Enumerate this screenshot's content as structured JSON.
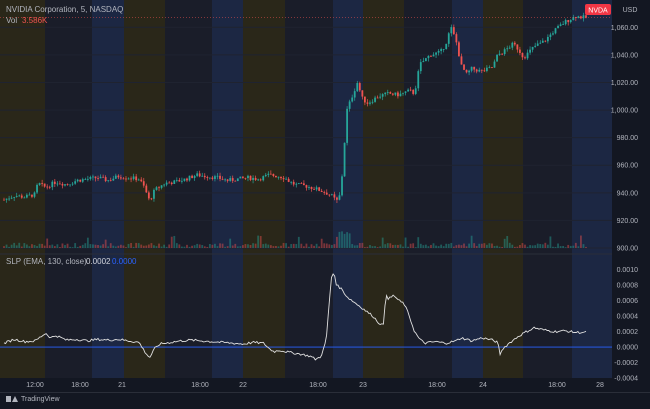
{
  "header": {
    "symbol_line": "NVIDIA Corporation, 5, NASDAQ",
    "vol_label": "Vol",
    "vol_value": "3.586K",
    "currency": "USD",
    "ticker_badge": "NVDA"
  },
  "indicator": {
    "label": "SLP (EMA, 130, close)",
    "value1": "0.0002",
    "value2": "0.0000"
  },
  "footer": {
    "brand": "TradingView"
  },
  "colors": {
    "background": "#131722",
    "up": "#26a69a",
    "down": "#ef5350",
    "indicator_line": "#e0e0e0",
    "zero_line": "#2962ff",
    "band_premarket": "#2a2719",
    "band_extended": "#1c2743",
    "band_regular": "#1a1d29",
    "badge": "#f23645"
  },
  "chart_data": [
    {
      "type": "candlestick",
      "title": "NVIDIA Corporation, 5, NASDAQ",
      "ylim": [
        900,
        1074
      ],
      "y_ticks": [
        900,
        920,
        940,
        960,
        980,
        1000,
        1020,
        1040,
        1060
      ],
      "y_tick_labels": [
        "900.00",
        "920.00",
        "940.00",
        "960.00",
        "980.00",
        "1,000.00",
        "1,020.00",
        "1,040.00",
        "1,060.00"
      ],
      "x_tick_labels": [
        "12:00",
        "18:00",
        "21",
        "18:00",
        "22",
        "18:00",
        "23",
        "18:00",
        "24",
        "18:00",
        "28"
      ],
      "series": [
        {
          "name": "NVDA",
          "close_path": [
            [
              0,
              935
            ],
            [
              0.02,
              938
            ],
            [
              0.04,
              937
            ],
            [
              0.06,
              939
            ],
            [
              0.065,
              947
            ],
            [
              0.08,
              944
            ],
            [
              0.1,
              948
            ],
            [
              0.12,
              946
            ],
            [
              0.14,
              949
            ],
            [
              0.16,
              950
            ],
            [
              0.18,
              951
            ],
            [
              0.2,
              949
            ],
            [
              0.22,
              952
            ],
            [
              0.24,
              951
            ],
            [
              0.26,
              950
            ],
            [
              0.27,
              944
            ],
            [
              0.28,
              934
            ],
            [
              0.29,
              942
            ],
            [
              0.31,
              947
            ],
            [
              0.33,
              948
            ],
            [
              0.35,
              950
            ],
            [
              0.37,
              953
            ],
            [
              0.39,
              952
            ],
            [
              0.41,
              951
            ],
            [
              0.43,
              949
            ],
            [
              0.45,
              950
            ],
            [
              0.47,
              951
            ],
            [
              0.49,
              950
            ],
            [
              0.51,
              953
            ],
            [
              0.53,
              952
            ],
            [
              0.54,
              951
            ],
            [
              0.55,
              948
            ],
            [
              0.56,
              946
            ],
            [
              0.58,
              945
            ],
            [
              0.6,
              943
            ],
            [
              0.62,
              940
            ],
            [
              0.63,
              938
            ],
            [
              0.64,
              934
            ],
            [
              0.645,
              936
            ],
            [
              0.65,
              950
            ],
            [
              0.66,
              1000
            ],
            [
              0.67,
              1010
            ],
            [
              0.68,
              1020
            ],
            [
              0.69,
              1008
            ],
            [
              0.7,
              1005
            ],
            [
              0.72,
              1010
            ],
            [
              0.74,
              1012
            ],
            [
              0.76,
              1011
            ],
            [
              0.78,
              1014
            ],
            [
              0.79,
              1012
            ],
            [
              0.8,
              1033
            ],
            [
              0.82,
              1040
            ],
            [
              0.84,
              1042
            ],
            [
              0.85,
              1048
            ],
            [
              0.86,
              1060
            ],
            [
              0.87,
              1050
            ],
            [
              0.88,
              1032
            ],
            [
              0.89,
              1026
            ],
            [
              0.9,
              1030
            ],
            [
              0.92,
              1028
            ],
            [
              0.94,
              1031
            ],
            [
              0.95,
              1040
            ],
            [
              0.96,
              1042
            ],
            [
              0.97,
              1045
            ],
            [
              0.98,
              1048
            ],
            [
              0.99,
              1044
            ],
            [
              1.0,
              1038
            ],
            [
              1.02,
              1046
            ],
            [
              1.04,
              1050
            ],
            [
              1.06,
              1058
            ],
            [
              1.08,
              1064
            ],
            [
              1.1,
              1068
            ],
            [
              1.12,
              1067
            ]
          ]
        }
      ],
      "volume_ylim": [
        0,
        12
      ]
    },
    {
      "type": "line",
      "title": "SLP (EMA, 130, close)",
      "ylim": [
        -0.0004,
        0.0011
      ],
      "y_ticks": [
        -0.0004,
        -0.0002,
        0.0,
        0.0002,
        0.0004,
        0.0006,
        0.0008,
        0.001
      ],
      "y_tick_labels": [
        "-0.0004",
        "-0.0002",
        "0.0000",
        "0.0002",
        "0.0004",
        "0.0006",
        "0.0008",
        "0.0010"
      ],
      "series": [
        {
          "name": "SLP",
          "path": [
            [
              0,
              5e-05
            ],
            [
              0.02,
              0.0001
            ],
            [
              0.04,
              7e-05
            ],
            [
              0.06,
              8e-05
            ],
            [
              0.08,
              0.00018
            ],
            [
              0.09,
              0.00012
            ],
            [
              0.1,
              0.00015
            ],
            [
              0.12,
              9e-05
            ],
            [
              0.14,
              0.0001
            ],
            [
              0.16,
              8e-05
            ],
            [
              0.18,
              0.0001
            ],
            [
              0.2,
              9e-05
            ],
            [
              0.22,
              0.0001
            ],
            [
              0.24,
              8e-05
            ],
            [
              0.26,
              6e-05
            ],
            [
              0.27,
              -5e-05
            ],
            [
              0.28,
              -0.00014
            ],
            [
              0.29,
              -2e-05
            ],
            [
              0.3,
              4e-05
            ],
            [
              0.32,
              6e-05
            ],
            [
              0.34,
              8e-05
            ],
            [
              0.36,
              9e-05
            ],
            [
              0.38,
              8e-05
            ],
            [
              0.4,
              7e-05
            ],
            [
              0.42,
              6e-05
            ],
            [
              0.44,
              5e-05
            ],
            [
              0.46,
              4e-05
            ],
            [
              0.48,
              6e-05
            ],
            [
              0.5,
              5e-05
            ],
            [
              0.51,
              -2e-05
            ],
            [
              0.52,
              -6e-05
            ],
            [
              0.53,
              -4e-05
            ],
            [
              0.55,
              -7e-05
            ],
            [
              0.57,
              -9e-05
            ],
            [
              0.59,
              -0.00012
            ],
            [
              0.6,
              -0.00016
            ],
            [
              0.61,
              -0.00012
            ],
            [
              0.62,
              8e-05
            ],
            [
              0.625,
              0.0005
            ],
            [
              0.63,
              0.0009
            ],
            [
              0.635,
              0.00097
            ],
            [
              0.64,
              0.0008
            ],
            [
              0.65,
              0.00075
            ],
            [
              0.66,
              0.00065
            ],
            [
              0.67,
              0.0006
            ],
            [
              0.68,
              0.00055
            ],
            [
              0.69,
              0.0005
            ],
            [
              0.7,
              0.00045
            ],
            [
              0.71,
              0.0004
            ],
            [
              0.72,
              0.00032
            ],
            [
              0.73,
              0.00028
            ],
            [
              0.735,
              0.0007
            ],
            [
              0.74,
              0.00062
            ],
            [
              0.75,
              0.00067
            ],
            [
              0.76,
              0.0006
            ],
            [
              0.77,
              0.00056
            ],
            [
              0.78,
              0.0004
            ],
            [
              0.79,
              0.0002
            ],
            [
              0.8,
              0.0001
            ],
            [
              0.81,
              5e-05
            ],
            [
              0.83,
              7e-05
            ],
            [
              0.85,
              5e-05
            ],
            [
              0.87,
              8e-05
            ],
            [
              0.88,
              0.00012
            ],
            [
              0.89,
              0.0001
            ],
            [
              0.9,
              8e-05
            ],
            [
              0.92,
              0.00012
            ],
            [
              0.94,
              9e-05
            ],
            [
              0.95,
              6e-05
            ],
            [
              0.955,
              -0.0001
            ],
            [
              0.96,
              -2e-05
            ],
            [
              0.97,
              4e-05
            ],
            [
              0.98,
              9e-05
            ],
            [
              0.99,
              0.00014
            ],
            [
              1.0,
              0.00018
            ],
            [
              1.02,
              0.00025
            ],
            [
              1.04,
              0.00022
            ],
            [
              1.06,
              0.0002
            ],
            [
              1.08,
              0.00021
            ],
            [
              1.1,
              0.00019
            ]
          ]
        }
      ]
    }
  ]
}
